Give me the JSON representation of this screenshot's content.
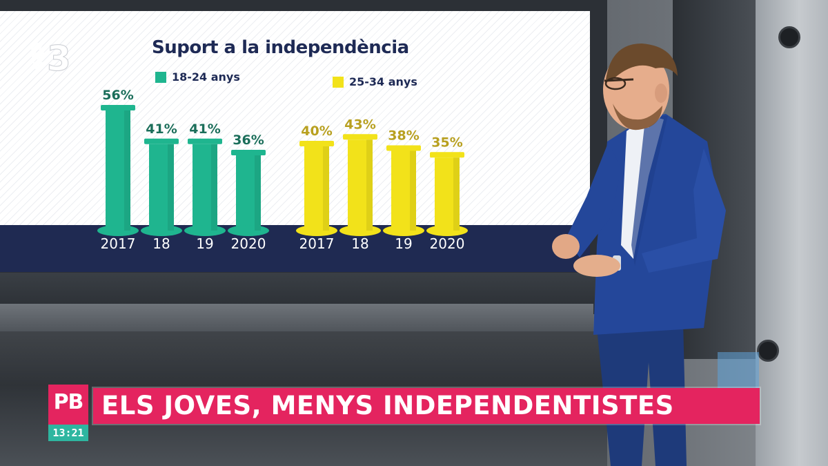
{
  "channel_logo": "3",
  "chart_data": {
    "type": "bar",
    "title": "Suport a la independència",
    "categories": [
      "2017",
      "18",
      "19",
      "2020"
    ],
    "series": [
      {
        "name": "18-24 anys",
        "color": "#1fb58f",
        "values": [
          56,
          41,
          41,
          36
        ],
        "labels": [
          "56%",
          "41%",
          "41%",
          "36%"
        ]
      },
      {
        "name": "25-34 anys",
        "color": "#f2e21a",
        "values": [
          40,
          43,
          38,
          35
        ],
        "labels": [
          "40%",
          "43%",
          "38%",
          "35%"
        ]
      }
    ],
    "label_colors": [
      "#1b6e5a",
      "#b8a020"
    ],
    "legend_position": "top",
    "ylim": [
      0,
      60
    ]
  },
  "lower_third": {
    "program_logo": "PB",
    "time": "13:21",
    "headline": "ELS JOVES, MENYS INDEPENDENTISTES"
  },
  "colors": {
    "accent_pink": "#e4245f",
    "clock_teal": "#2eb6a0",
    "screen_navy": "#1f2a52"
  }
}
